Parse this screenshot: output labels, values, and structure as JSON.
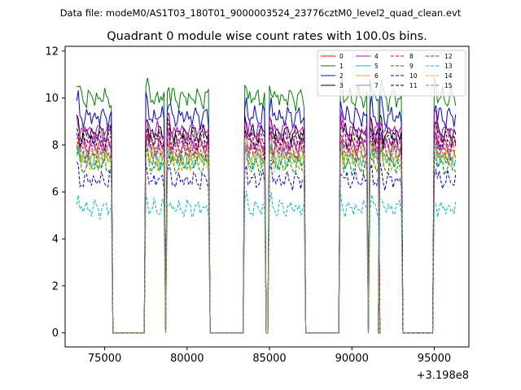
{
  "suptitle": "Data file: modeM0/AS1T03_180T01_9000003524_23776cztM0_level2_quad_clean.evt",
  "chart_data": {
    "type": "line",
    "title": "Quadrant 0 module wise count rates with 100.0s bins.",
    "xlabel": "",
    "ylabel": "",
    "x_offset_label": "+3.198e8",
    "xlim": [
      72600,
      97100
    ],
    "ylim": [
      -0.6,
      12.2
    ],
    "xticks": [
      75000,
      80000,
      85000,
      90000,
      95000
    ],
    "xtick_labels": [
      "75000",
      "80000",
      "85000",
      "90000",
      "95000"
    ],
    "yticks": [
      0,
      2,
      4,
      6,
      8,
      10,
      12
    ],
    "ytick_labels": [
      "0",
      "2",
      "4",
      "6",
      "8",
      "10",
      "12"
    ],
    "legend_position": "upper right",
    "on_intervals": [
      [
        73300,
        75400
      ],
      [
        77500,
        78600
      ],
      [
        78800,
        81300
      ],
      [
        83500,
        84700
      ],
      [
        85000,
        87100
      ],
      [
        89300,
        90900
      ],
      [
        91100,
        91600
      ],
      [
        91700,
        93000
      ],
      [
        95000,
        96300
      ]
    ],
    "series": [
      {
        "name": "0",
        "color": "#ff0000",
        "dash": "solid",
        "level": 8.0
      },
      {
        "name": "1",
        "color": "#008000",
        "dash": "solid",
        "level": 10.0
      },
      {
        "name": "2",
        "color": "#0000ff",
        "dash": "solid",
        "level": 9.2
      },
      {
        "name": "3",
        "color": "#000000",
        "dash": "solid",
        "level": 8.5
      },
      {
        "name": "4",
        "color": "#bf00bf",
        "dash": "solid",
        "level": 8.6
      },
      {
        "name": "5",
        "color": "#00bfbf",
        "dash": "solid",
        "level": 7.4
      },
      {
        "name": "6",
        "color": "#bfbf00",
        "dash": "solid",
        "level": 7.6
      },
      {
        "name": "7",
        "color": "#7f7fff",
        "dash": "solid",
        "level": 7.9
      },
      {
        "name": "8",
        "color": "#ff0000",
        "dash": "dashed",
        "level": 7.7
      },
      {
        "name": "9",
        "color": "#008000",
        "dash": "dashed",
        "level": 7.1
      },
      {
        "name": "10",
        "color": "#0000ff",
        "dash": "dashed",
        "level": 6.5
      },
      {
        "name": "11",
        "color": "#000000",
        "dash": "dashed",
        "level": 8.2
      },
      {
        "name": "12",
        "color": "#bf00bf",
        "dash": "dashed",
        "level": 8.1
      },
      {
        "name": "13",
        "color": "#00bfbf",
        "dash": "dashed",
        "level": 5.3
      },
      {
        "name": "14",
        "color": "#bfbf00",
        "dash": "dashed",
        "level": 7.3
      },
      {
        "name": "15",
        "color": "#7f7f7f",
        "dash": "dashed",
        "level": 7.5
      }
    ]
  }
}
